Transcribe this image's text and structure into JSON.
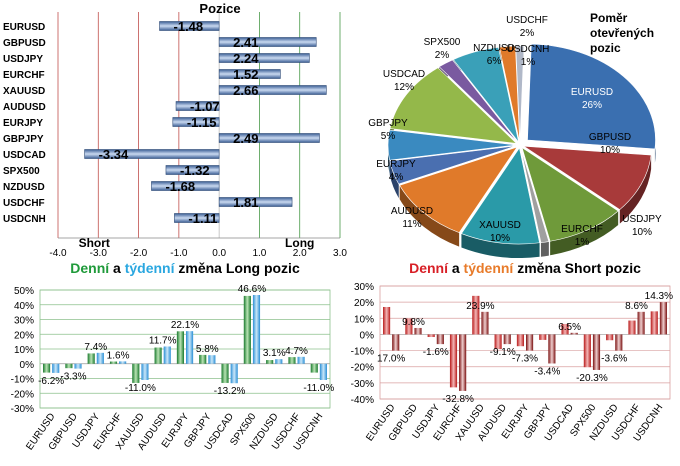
{
  "colors": {
    "bar_blue": "#5b7fb5",
    "long_green": "#1f9a3a",
    "weekly_blue": "#2aa7e0",
    "short_red": "#d81f26",
    "weekly_orange": "#e87b2a",
    "grid_red": "#c0504d",
    "grid_green": "#4a9a4a"
  },
  "chart_data": [
    {
      "type": "bar",
      "orientation": "horizontal",
      "title": "Pozice",
      "categories": [
        "EURUSD",
        "GBPUSD",
        "USDJPY",
        "EURCHF",
        "XAUUSD",
        "AUDUSD",
        "EURJPY",
        "GBPJPY",
        "USDCAD",
        "SPX500",
        "NZDUSD",
        "USDCHF",
        "USDCNH"
      ],
      "values": [
        -1.48,
        2.41,
        2.24,
        1.52,
        2.66,
        -1.07,
        -1.15,
        2.49,
        -3.34,
        -1.32,
        -1.68,
        1.81,
        -1.11
      ],
      "xlim": [
        -4.0,
        3.0
      ],
      "xticks": [
        "-4.0",
        "-3.0",
        "-2.0",
        "-1.0",
        "0.0",
        "1.0",
        "2.0",
        "3.0"
      ],
      "annotations": [
        "Short",
        "Long"
      ]
    },
    {
      "type": "pie",
      "title": "Poměr otevřených pozic",
      "labels": [
        "EURUSD",
        "GBPUSD",
        "USDJPY",
        "EURCHF",
        "XAUUSD",
        "AUDUSD",
        "EURJPY",
        "GBPJPY",
        "USDCAD",
        "SPX500",
        "NZDUSD",
        "USDCHF",
        "USDCNH"
      ],
      "values": [
        26,
        10,
        10,
        1,
        10,
        11,
        4,
        5,
        12,
        2,
        6,
        2,
        1
      ],
      "value_labels": [
        "26%",
        "10%",
        "10%",
        "1%",
        "10%",
        "11%",
        "4%",
        "5%",
        "12%",
        "2%",
        "6%",
        "2%",
        "1%"
      ],
      "colors": [
        "#3a6fb0",
        "#a83a3a",
        "#6f9a3a",
        "#a0a0a0",
        "#2a9aa8",
        "#e07a2a",
        "#4a6fb0",
        "#3a8ac0",
        "#94b84a",
        "#7a5aa0",
        "#3aa0b8",
        "#e07a2a",
        "#b0b8c8"
      ]
    },
    {
      "type": "bar",
      "title_parts": [
        "Denní",
        " a ",
        "týdenní",
        " změna Long pozic"
      ],
      "categories": [
        "EURUSD",
        "GBPUSD",
        "USDJPY",
        "EURCHF",
        "XAUUSD",
        "AUDUSD",
        "EURJPY",
        "GBPJPY",
        "USDCAD",
        "SPX500",
        "NZDUSD",
        "USDCHF",
        "USDCNH"
      ],
      "series": [
        {
          "name": "Denní",
          "values": [
            -6.0,
            -3.0,
            7.0,
            1.5,
            -13.0,
            11.0,
            22.0,
            6.0,
            -13.0,
            46.0,
            2.5,
            4.5,
            -6.0
          ]
        },
        {
          "name": "týdenní",
          "values": [
            -6.2,
            -3.3,
            7.4,
            1.6,
            -11.0,
            11.7,
            22.1,
            5.8,
            -13.2,
            46.6,
            3.1,
            4.7,
            -11.0
          ]
        }
      ],
      "data_labels": [
        "-6.2%",
        "-3.3%",
        "7.4%",
        "1.6%",
        "-11.0%",
        "11.7%",
        "22.1%",
        "5.8%",
        "-13.2%",
        "46.6%",
        "3.1%",
        "4.7%",
        "-11.0%"
      ],
      "ylim": [
        -30,
        50
      ],
      "yticks": [
        "-30%",
        "-20%",
        "-10%",
        "0%",
        "10%",
        "20%",
        "30%",
        "40%",
        "50%"
      ]
    },
    {
      "type": "bar",
      "title_parts": [
        "Denní",
        " a ",
        "týdenní",
        " změna Short pozic"
      ],
      "categories": [
        "EURUSD",
        "GBPUSD",
        "USDJPY",
        "EURCHF",
        "XAUUSD",
        "AUDUSD",
        "EURJPY",
        "GBPJPY",
        "USDCAD",
        "SPX500",
        "NZDUSD",
        "USDCHF",
        "USDCNH"
      ],
      "series": [
        {
          "name": "Denní",
          "values": [
            17.0,
            9.8,
            -1.6,
            -32.8,
            23.9,
            -9.1,
            -7.3,
            -3.4,
            6.5,
            -20.3,
            -3.6,
            8.6,
            14.3
          ]
        },
        {
          "name": "týdenní",
          "values": [
            -10.0,
            4.0,
            -6.0,
            -35.0,
            14.0,
            -6.0,
            -10.0,
            -18.0,
            1.0,
            -22.0,
            -10.0,
            14.0,
            20.0
          ]
        }
      ],
      "data_labels": [
        "17.0%",
        "9.8%",
        "-1.6%",
        "-32.8%",
        "23.9%",
        "-9.1%",
        "-7.3%",
        "-3.4%",
        "6.5%",
        "-20.3%",
        "-3.6%",
        "8.6%",
        "14.3%"
      ],
      "ylim": [
        -40,
        30
      ],
      "yticks": [
        "-40%",
        "-30%",
        "-20%",
        "-10%",
        "0%",
        "10%",
        "20%",
        "30%"
      ]
    }
  ]
}
